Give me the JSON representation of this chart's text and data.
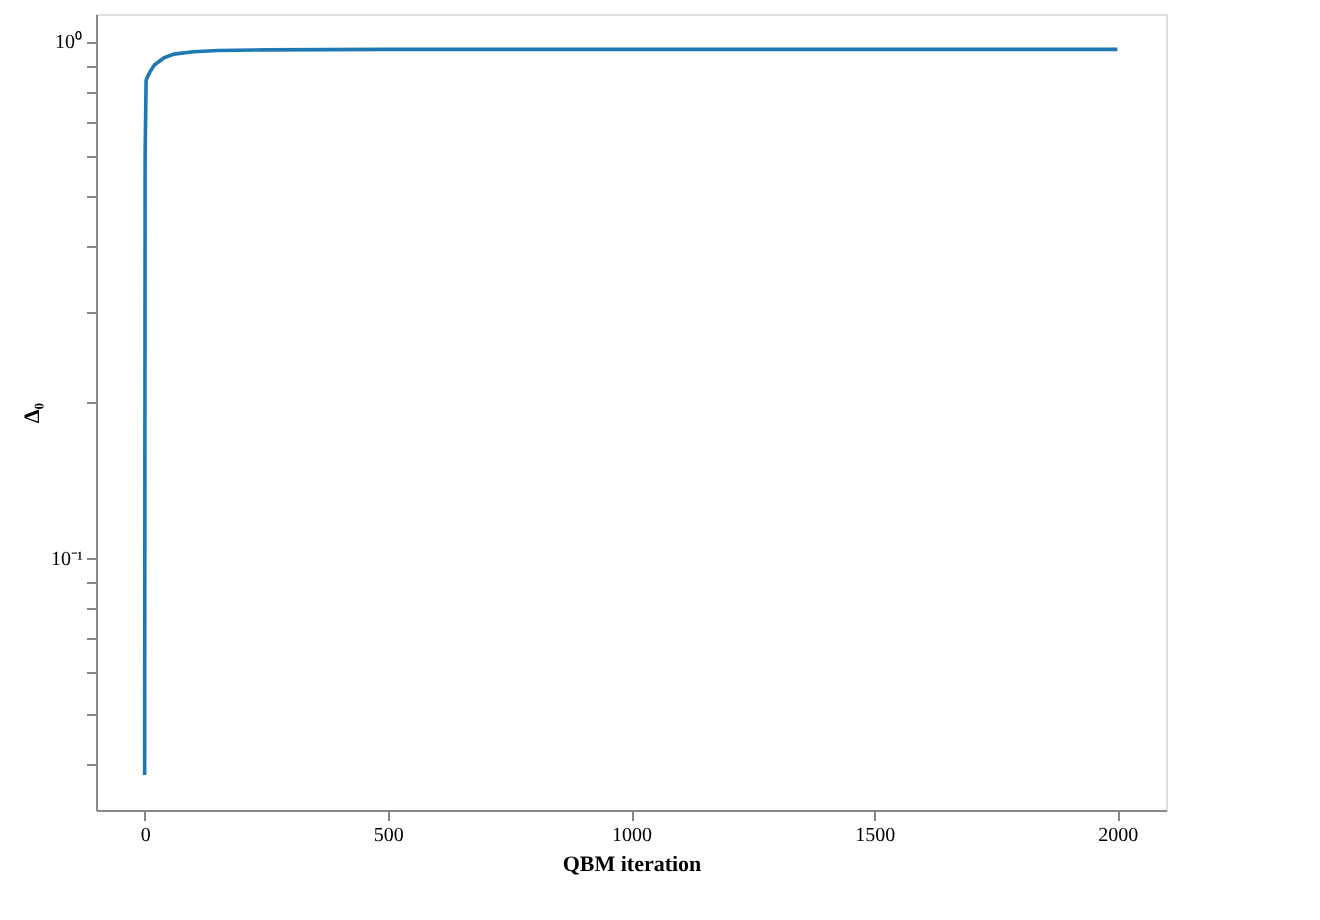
{
  "chart_data": {
    "type": "line",
    "xlabel": "QBM iteration",
    "ylabel": "Δ₀",
    "x": [
      0,
      1,
      3,
      5,
      10,
      20,
      40,
      60,
      100,
      150,
      250,
      500,
      1000,
      1500,
      2000
    ],
    "series": [
      {
        "color": "#1f77b4",
        "values": [
          0.038,
          0.6,
          0.84,
          0.85,
          0.87,
          0.9,
          0.93,
          0.945,
          0.955,
          0.96,
          0.963,
          0.965,
          0.965,
          0.965,
          0.965
        ]
      }
    ],
    "log": "y",
    "xlim": [
      -100,
      2100
    ],
    "ylim": [
      0.0325,
      1.13
    ],
    "xticks": [
      0,
      500,
      1000,
      1500,
      2000
    ],
    "yticks": [
      {
        "value": 0.04,
        "label": null
      },
      {
        "value": 0.05,
        "label": null
      },
      {
        "value": 0.06,
        "label": null
      },
      {
        "value": 0.07,
        "label": null
      },
      {
        "value": 0.08,
        "label": null
      },
      {
        "value": 0.09,
        "label": null
      },
      {
        "value": 0.1,
        "label": "10⁻¹"
      },
      {
        "value": 0.2,
        "label": null
      },
      {
        "value": 0.3,
        "label": null
      },
      {
        "value": 0.4,
        "label": null
      },
      {
        "value": 0.5,
        "label": null
      },
      {
        "value": 0.6,
        "label": null
      },
      {
        "value": 0.7,
        "label": null
      },
      {
        "value": 0.8,
        "label": null
      },
      {
        "value": 0.9,
        "label": null
      },
      {
        "value": 1,
        "label": "10⁰"
      }
    ],
    "grid": false,
    "line_style": "solid",
    "marker": "none"
  }
}
